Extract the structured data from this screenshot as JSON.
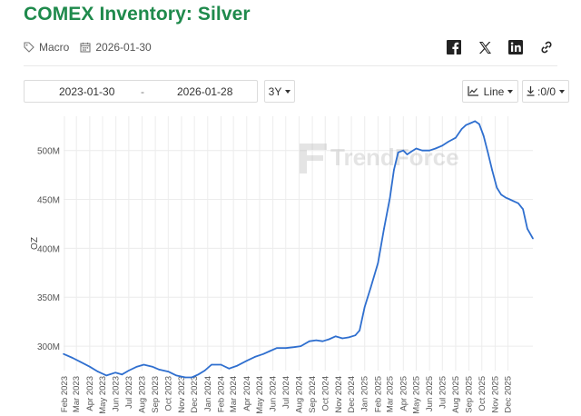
{
  "page": {
    "title": "COMEX Inventory: Silver",
    "category_label": "Macro",
    "date": "2026-01-30",
    "accent_color": "#1f8a4c"
  },
  "share_icons": [
    "facebook-icon",
    "x-icon",
    "linkedin-icon",
    "link-icon"
  ],
  "controls": {
    "start_date": "2023-01-30",
    "separator": "-",
    "end_date": "2026-01-28",
    "range_label": "3Y",
    "chart_type_label": "Line",
    "export_label": ":0/0"
  },
  "watermark": "TrendForce",
  "chart_data": {
    "type": "line",
    "title": "",
    "xlabel": "",
    "ylabel": "OZ",
    "line_color": "#2f6fcf",
    "grid": true,
    "ylim": [
      275,
      535
    ],
    "y_ticks": [
      300,
      350,
      400,
      450,
      500
    ],
    "y_tick_labels": [
      "300M",
      "350M",
      "400M",
      "450M",
      "500M"
    ],
    "x_start": "2023-01-30",
    "x_end": "2026-01-28",
    "x_tick_labels": [
      "Feb 2023",
      "Mar 2023",
      "Apr 2023",
      "May 2023",
      "Jun 2023",
      "Jul 2023",
      "Aug 2023",
      "Sep 2023",
      "Oct 2023",
      "Nov 2023",
      "Dec 2023",
      "Jan 2024",
      "Feb 2024",
      "Mar 2024",
      "Apr 2024",
      "May 2024",
      "Jun 2024",
      "Jul 2024",
      "Aug 2024",
      "Sep 2024",
      "Oct 2024",
      "Nov 2024",
      "Dec 2024",
      "Jan 2025",
      "Feb 2025",
      "Mar 2025",
      "Apr 2025",
      "May 2025",
      "Jun 2025",
      "Jul 2025",
      "Aug 2025",
      "Sep 2025",
      "Oct 2025",
      "Nov 2025",
      "Dec 2025"
    ],
    "x_tick_dates": [
      "2023-02-01",
      "2023-03-01",
      "2023-04-01",
      "2023-05-01",
      "2023-06-01",
      "2023-07-01",
      "2023-08-01",
      "2023-09-01",
      "2023-10-01",
      "2023-11-01",
      "2023-12-01",
      "2024-01-01",
      "2024-02-01",
      "2024-03-01",
      "2024-04-01",
      "2024-05-01",
      "2024-06-01",
      "2024-07-01",
      "2024-08-01",
      "2024-09-01",
      "2024-10-01",
      "2024-11-01",
      "2024-12-01",
      "2025-01-01",
      "2025-02-01",
      "2025-03-01",
      "2025-04-01",
      "2025-05-01",
      "2025-06-01",
      "2025-07-01",
      "2025-08-01",
      "2025-09-01",
      "2025-10-01",
      "2025-11-01",
      "2025-12-01"
    ],
    "series": [
      {
        "name": "",
        "x": [
          "2023-01-30",
          "2023-02-20",
          "2023-03-10",
          "2023-04-01",
          "2023-04-20",
          "2023-05-10",
          "2023-05-31",
          "2023-06-15",
          "2023-07-01",
          "2023-07-20",
          "2023-08-05",
          "2023-08-25",
          "2023-09-10",
          "2023-10-01",
          "2023-10-20",
          "2023-11-10",
          "2023-11-25",
          "2023-12-10",
          "2023-12-25",
          "2024-01-10",
          "2024-02-01",
          "2024-02-20",
          "2024-03-10",
          "2024-04-01",
          "2024-04-20",
          "2024-05-10",
          "2024-05-25",
          "2024-06-10",
          "2024-07-01",
          "2024-07-20",
          "2024-08-05",
          "2024-08-25",
          "2024-09-10",
          "2024-09-25",
          "2024-10-10",
          "2024-10-25",
          "2024-11-10",
          "2024-11-25",
          "2024-12-10",
          "2024-12-20",
          "2025-01-01",
          "2025-01-15",
          "2025-02-01",
          "2025-02-15",
          "2025-03-01",
          "2025-03-10",
          "2025-03-20",
          "2025-04-01",
          "2025-04-10",
          "2025-04-20",
          "2025-05-01",
          "2025-05-15",
          "2025-06-01",
          "2025-06-15",
          "2025-07-01",
          "2025-07-15",
          "2025-08-01",
          "2025-08-15",
          "2025-08-25",
          "2025-09-05",
          "2025-09-15",
          "2025-09-25",
          "2025-10-05",
          "2025-10-15",
          "2025-10-25",
          "2025-11-05",
          "2025-11-15",
          "2025-11-25",
          "2025-12-05",
          "2025-12-15",
          "2025-12-25",
          "2026-01-05",
          "2026-01-15",
          "2026-01-28"
        ],
        "y": [
          292,
          288,
          284,
          279,
          274,
          270,
          273,
          271,
          275,
          279,
          281,
          279,
          276,
          274,
          270,
          268,
          268,
          271,
          275,
          281,
          281,
          277,
          280,
          285,
          289,
          292,
          295,
          298,
          298,
          299,
          300,
          305,
          306,
          305,
          307,
          310,
          308,
          309,
          311,
          316,
          340,
          360,
          385,
          420,
          452,
          480,
          498,
          500,
          496,
          499,
          502,
          500,
          500,
          502,
          505,
          509,
          513,
          522,
          526,
          528,
          530,
          527,
          515,
          498,
          480,
          462,
          455,
          452,
          450,
          448,
          446,
          440,
          420,
          410
        ]
      }
    ]
  }
}
